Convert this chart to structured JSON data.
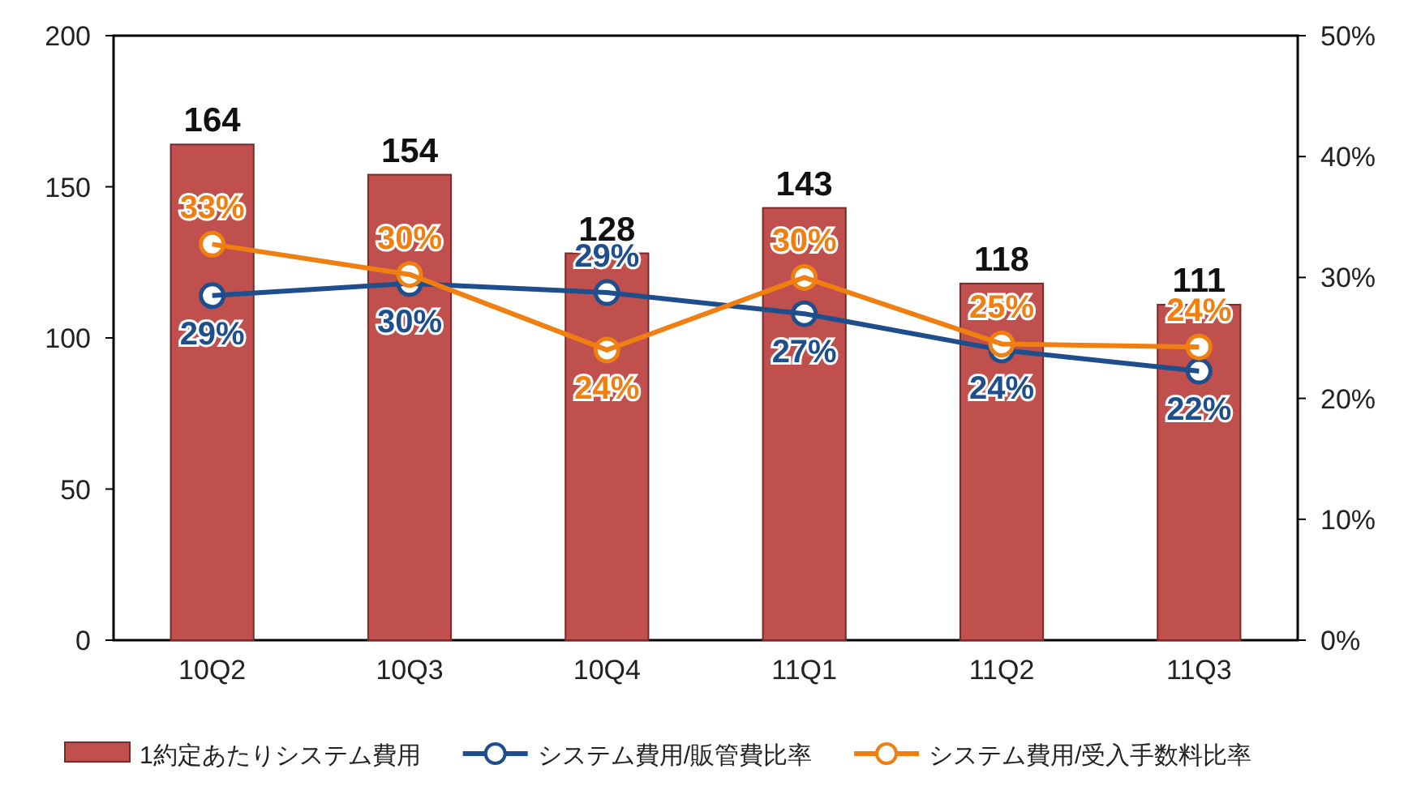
{
  "chart_data": {
    "type": "bar",
    "categories": [
      "10Q2",
      "10Q3",
      "10Q4",
      "11Q1",
      "11Q2",
      "11Q3"
    ],
    "series": [
      {
        "name": "1約定あたりシステム費用",
        "color": "#c0504d",
        "values": [
          164,
          154,
          128,
          143,
          118,
          111
        ],
        "value_labels": [
          "164",
          "154",
          "128",
          "143",
          "118",
          "111"
        ]
      },
      {
        "name": "システム費用/販管費比率",
        "type": "line",
        "axis": "y2",
        "color": "#1f4e8c",
        "marker": "circle",
        "values": [
          28.5,
          29.5,
          28.75,
          27,
          24,
          22.25
        ],
        "value_labels": [
          "29%",
          "30%",
          "29%",
          "27%",
          "24%",
          "22%"
        ]
      },
      {
        "name": "システム費用/受入手数料比率",
        "type": "line",
        "axis": "y2",
        "color": "#f07f12",
        "marker": "circle",
        "values": [
          32.75,
          30.25,
          24,
          30,
          24.5,
          24.25
        ],
        "value_labels": [
          "33%",
          "30%",
          "24%",
          "30%",
          "25%",
          "24%"
        ]
      }
    ],
    "ylim": [
      0,
      200
    ],
    "yticks": [
      0,
      50,
      100,
      150,
      200
    ],
    "y2lim": [
      0,
      50
    ],
    "y2ticks": [
      {
        "value": 0,
        "label": "0%"
      },
      {
        "value": 10,
        "label": "10%"
      },
      {
        "value": 20,
        "label": "20%"
      },
      {
        "value": 30,
        "label": "30%"
      },
      {
        "value": 40,
        "label": "40%"
      },
      {
        "value": 50,
        "label": "50%"
      }
    ],
    "legend": "bottom",
    "grid": false
  }
}
